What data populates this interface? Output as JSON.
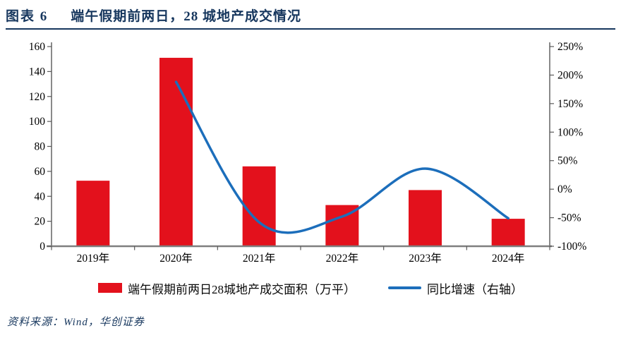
{
  "header": {
    "label": "图表 6",
    "title": "端午假期前两日，28 城地产成交情况"
  },
  "source": "资料来源：Wind，华创证券",
  "colors": {
    "bar": "#E3111C",
    "line": "#1C6EBB",
    "navy": "#17375E",
    "axis": "#595959",
    "baseline": "#7F7F7F"
  },
  "legend": [
    {
      "kind": "bar",
      "label": "端午假期前两日28城地产成交面积（万平）"
    },
    {
      "kind": "line",
      "label": "同比增速（右轴）"
    }
  ],
  "chart_data": {
    "type": "bar",
    "subtype": "bar+line combo",
    "categories": [
      "2019年",
      "2020年",
      "2021年",
      "2022年",
      "2023年",
      "2024年"
    ],
    "series": [
      {
        "name": "端午假期前两日28城地产成交面积（万平）",
        "type": "bar",
        "axis": "left",
        "values": [
          52.5,
          151,
          64,
          33,
          45,
          22
        ]
      },
      {
        "name": "同比增速（右轴）",
        "type": "line",
        "axis": "right",
        "smooth": true,
        "values": [
          null,
          188,
          -58,
          -48,
          36,
          -51
        ]
      }
    ],
    "left_axis": {
      "min": 0,
      "max": 160,
      "step": 20,
      "ticks": [
        "0",
        "20",
        "40",
        "60",
        "80",
        "100",
        "120",
        "140",
        "160"
      ]
    },
    "right_axis": {
      "min": -100,
      "max": 250,
      "step": 50,
      "ticks": [
        "-100%",
        "-50%",
        "0%",
        "50%",
        "100%",
        "150%",
        "200%",
        "250%"
      ]
    },
    "grid": false,
    "legend_position": "bottom"
  }
}
